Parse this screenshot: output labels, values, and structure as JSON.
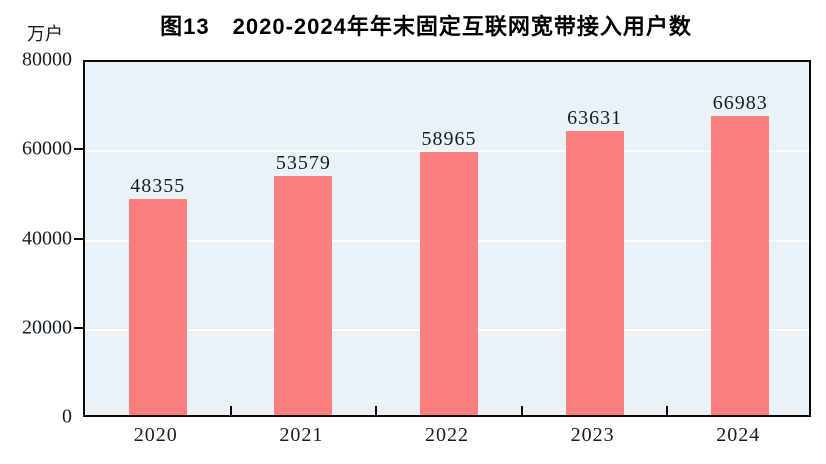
{
  "header": {
    "title": "图13　2020-2024年年末固定互联网宽带接入用户数",
    "unit_label": "万户"
  },
  "chart_data": {
    "type": "bar",
    "title": "图13　2020-2024年年末固定互联网宽带接入用户数",
    "unit_label": "万户",
    "categories": [
      "2020",
      "2021",
      "2022",
      "2023",
      "2024"
    ],
    "values": [
      48355,
      53579,
      58965,
      63631,
      66983
    ],
    "data_labels": [
      "48355",
      "53579",
      "58965",
      "63631",
      "66983"
    ],
    "xlabel": "",
    "ylabel": "万户",
    "ylim": [
      0,
      80000
    ],
    "yticks": [
      0,
      20000,
      40000,
      60000,
      80000
    ],
    "grid": "horizontal",
    "legend_position": "none",
    "colors": {
      "bar": "#FC7F7F",
      "plot_background": "#EBF2F7",
      "page_background": "#FFFFFF",
      "gridline": "#FFFFFF",
      "axis": "#0A0A0A",
      "label_text": "#141E28",
      "title_text": "#000000"
    }
  }
}
